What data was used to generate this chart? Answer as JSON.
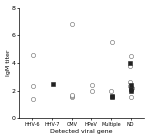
{
  "title": "",
  "xlabel": "Detected viral gene",
  "ylabel": "IgM titer",
  "ylim": [
    0,
    8
  ],
  "yticks": [
    0,
    2,
    4,
    6,
    8
  ],
  "categories": [
    "HHV-6",
    "HHV-7",
    "CMV",
    "HPeV",
    "Multiple",
    "ND"
  ],
  "white_circles": {
    "HHV-6": [
      1.4,
      2.3,
      4.6
    ],
    "HHV-7": [],
    "CMV": [
      6.8,
      1.5,
      1.6,
      1.7
    ],
    "HPeV": [
      2.4,
      2.0
    ],
    "Multiple": [
      2.0,
      5.5
    ],
    "ND": [
      1.5,
      2.1,
      2.2,
      2.3,
      2.6,
      3.8,
      4.5
    ]
  },
  "black_squares": {
    "HHV-6": [],
    "HHV-7": [
      2.5
    ],
    "CMV": [],
    "HPeV": [],
    "Multiple": [
      1.5,
      1.6
    ],
    "ND": [
      2.0,
      2.1,
      2.4,
      4.0
    ]
  },
  "open_circle_color": "#ffffff",
  "open_circle_edgecolor": "#666666",
  "black_square_color": "#222222",
  "marker_size": 3.0,
  "jitter_strength": 0.05
}
